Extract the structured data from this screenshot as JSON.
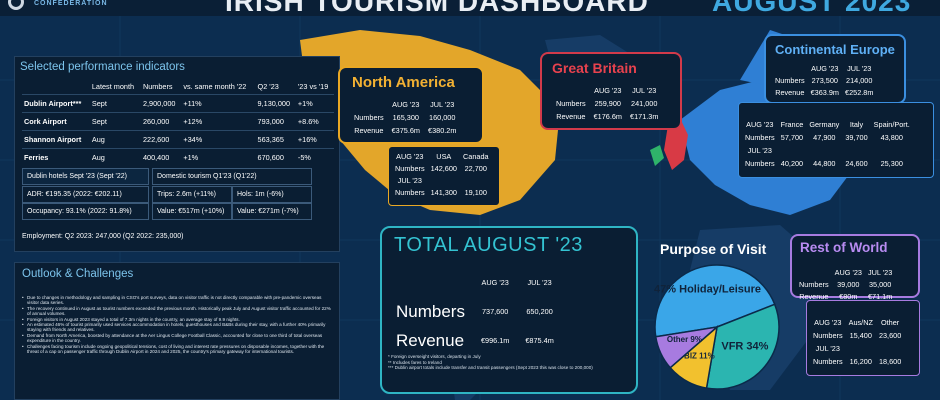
{
  "header": {
    "title": "IRISH TOURISM DASHBOARD",
    "period": "AUGUST 2023",
    "org": "CONFEDERATION"
  },
  "colors": {
    "accent": "#3fa9e0",
    "north_america": "#e9a824",
    "great_britain": "#d23a4a",
    "continental_europe": "#3b8fe0",
    "rest_of_world": "#a77be0",
    "total": "#2fb5c4"
  },
  "kpi": {
    "title": "Selected performance indicators",
    "columns": [
      "",
      "Latest month",
      "Numbers",
      "vs. same month '22",
      "Q2 '23",
      "'23 vs '19"
    ],
    "rows": [
      {
        "name": "Dublin Airport***",
        "month": "Sept",
        "numbers": "2,900,000",
        "vs22": "+11%",
        "q2": "9,130,000",
        "vs19": "+1%"
      },
      {
        "name": "Cork Airport",
        "month": "Sept",
        "numbers": "260,000",
        "vs22": "+12%",
        "q2": "793,000",
        "vs19": "+8.6%"
      },
      {
        "name": "Shannon Airport",
        "month": "Aug",
        "numbers": "222,600",
        "vs22": "+34%",
        "q2": "563,365",
        "vs19": "+16%"
      },
      {
        "name": "Ferries",
        "month": "Aug",
        "numbers": "400,400",
        "vs22": "+1%",
        "q2": "670,600",
        "vs19": "-5%"
      }
    ],
    "hotels": {
      "head": "Dublin hotels  Sept '23 (Sept '22)",
      "adr": "ADR: €195.35",
      "adr_prev": "(2022: €202.11)",
      "occ": "Occupancy: 93.1%",
      "occ_prev": "(2022: 91.8%)"
    },
    "domestic": {
      "head": "Domestic tourism Q1'23 (Q1'22)",
      "trips": "Trips: 2.6m (+11%)",
      "hols": "Hols: 1m (-6%)",
      "value": "Value: €517m (+10%)",
      "value2": "Value: €271m (-7%)"
    },
    "employment": "Employment: Q2 2023: 247,000 (Q2 2022: 235,000)"
  },
  "outlook": {
    "title": "Outlook & Challenges",
    "items": [
      "Due to changes in methodology and sampling in CSO's port surveys, data on visitor traffic is not directly comparable with pre-pandemic overseas visitor data series.",
      "The recovery continued in August as tourist numbers exceeded the previous month. Historically peak July and August visitor traffic accounted for 22% of annual volumes.",
      "Foreign visitors in August 2023 stayed a total of 7.3m nights in the country, an average stay of 9.9 nights.",
      "An estimated 46% of tourist primarily used services accommodation in hotels, guesthouses and B&Bs during their stay, with a further 40% primarily staying with friends and relatives.",
      "Demand from North America, boosted by attendance at the Aer Lingus College Football Classic, accounted for close to one third of total overseas expenditure in the country.",
      "Challenges facing tourism include ongoing geopolitical tensions, cost of living and interest rate pressures on disposable incomes, together with the threat of a cap on passenger traffic through Dublin Airport in 2024 and 2025, the country's primary gateway for international tourists."
    ]
  },
  "north_america": {
    "title": "North America",
    "headers": [
      "AUG '23",
      "JUL '23"
    ],
    "numbers": [
      "165,300",
      "160,000"
    ],
    "revenue": [
      "€375.6m",
      "€380.2m"
    ],
    "labels": {
      "numbers": "Numbers",
      "revenue": "Revenue"
    },
    "split": {
      "aug_label": "AUG '23",
      "jul_label": "JUL '23",
      "cols": [
        "USA",
        "Canada"
      ],
      "aug": [
        "142,600",
        "22,700"
      ],
      "jul": [
        "141,300",
        "19,100"
      ]
    }
  },
  "great_britain": {
    "title": "Great Britain",
    "headers": [
      "AUG '23",
      "JUL '23"
    ],
    "numbers": [
      "259,900",
      "241,000"
    ],
    "revenue": [
      "€176.6m",
      "€171.3m"
    ]
  },
  "continental_europe": {
    "title": "Continental Europe",
    "headers": [
      "AUG '23",
      "JUL '23"
    ],
    "numbers": [
      "273,500",
      "214,000"
    ],
    "revenue": [
      "€363.9m",
      "€252.8m"
    ],
    "split": {
      "aug_label": "AUG '23",
      "jul_label": "JUL '23",
      "cols": [
        "France",
        "Germany",
        "Italy",
        "Spain/Port."
      ],
      "aug": [
        "57,700",
        "47,900",
        "39,700",
        "43,800"
      ],
      "jul": [
        "40,200",
        "44,800",
        "24,600",
        "25,300"
      ]
    }
  },
  "total": {
    "title": "TOTAL AUGUST '23",
    "headers": [
      "AUG '23",
      "JUL '23"
    ],
    "numbers": [
      "737,600",
      "650,200"
    ],
    "revenue": [
      "€996.1m",
      "€875.4m"
    ],
    "labels": {
      "numbers": "Numbers",
      "revenue": "Revenue"
    },
    "notes": [
      "*  Foreign overseight visitors, departing in July",
      "**  Includes fares to Ireland",
      "*** Dublin airport totals include transfer and transit passengers (Sept 2023 this was close to 200,000)"
    ]
  },
  "purpose": {
    "title": "Purpose of Visit",
    "slices": [
      {
        "label": "47% Holiday/Leisure",
        "value": 47,
        "color": "#3aa6e8"
      },
      {
        "label": "VFR 34%",
        "value": 34,
        "color": "#2bb5b0"
      },
      {
        "label": "BIZ 11%",
        "value": 11,
        "color": "#f2c12e"
      },
      {
        "label": "Other 9%",
        "value": 9,
        "color": "#a77be0"
      }
    ]
  },
  "rest_of_world": {
    "title": "Rest of World",
    "headers": [
      "AUG '23",
      "JUL '23"
    ],
    "numbers": [
      "39,000",
      "35,000"
    ],
    "revenue": [
      "€80m",
      "€71.1m"
    ],
    "split": {
      "aug_label": "AUG '23",
      "jul_label": "JUL '23",
      "cols": [
        "Aus/NZ",
        "Other"
      ],
      "aug": [
        "15,400",
        "23,600"
      ],
      "jul": [
        "16,200",
        "18,600"
      ]
    }
  }
}
